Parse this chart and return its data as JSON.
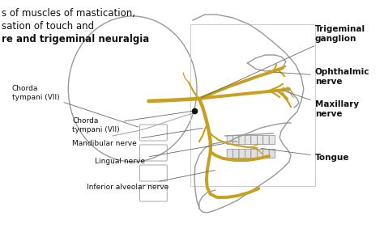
{
  "bg_color": "#ffffff",
  "skull_color": "#999999",
  "skull_lw": 1.0,
  "nerve_color": "#c8a020",
  "nerve_lw": 2.8,
  "nerve_lw_thin": 1.5,
  "nerve_lw_tiny": 0.9,
  "text_color": "#111111",
  "title_lines": [
    "s of muscles of mastication,",
    "sation of touch and",
    "re and trigeminal neuralgia"
  ],
  "title_fontsize": 8.5,
  "label_fontsize": 6.5,
  "label_fontsize_bold": 7.5
}
